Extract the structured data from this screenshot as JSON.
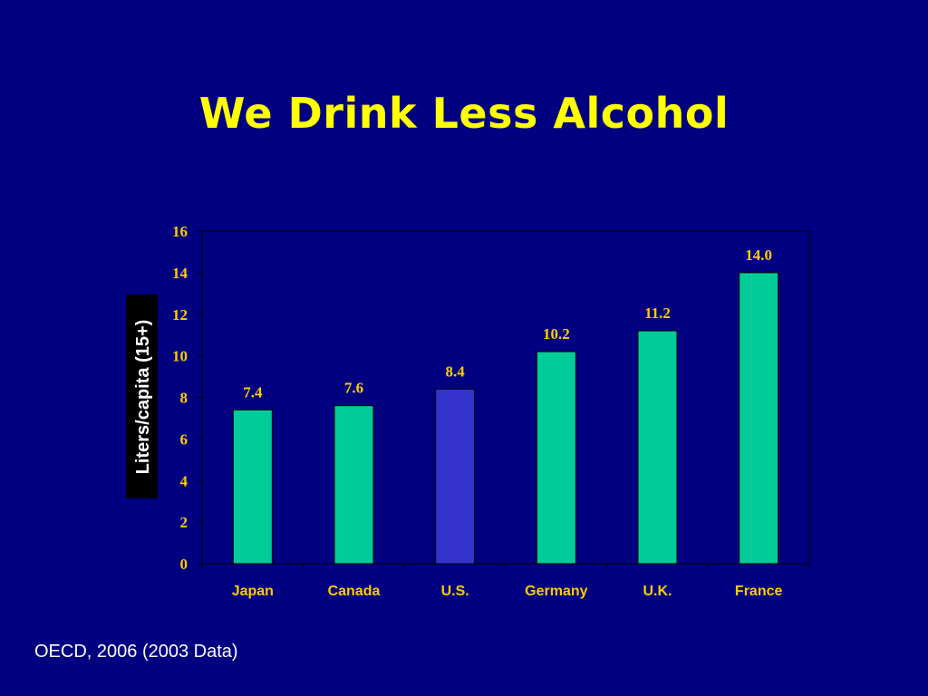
{
  "slide": {
    "title": "We Drink Less Alcohol",
    "source": "OECD, 2006 (2003 Data)"
  },
  "colors": {
    "background": "#000080",
    "title": "#FFFF00",
    "bar_default": "#00CC99",
    "bar_highlight": "#3333CC",
    "labels": "#FFCC00",
    "axis": "#000000"
  },
  "chart_data": {
    "type": "bar",
    "title": "",
    "xlabel": "",
    "ylabel": "Liters/capita (15+)",
    "categories": [
      "Japan",
      "Canada",
      "U.S.",
      "Germany",
      "U.K.",
      "France"
    ],
    "values": [
      7.4,
      7.6,
      8.4,
      10.2,
      11.2,
      14.0
    ],
    "value_labels": [
      "7.4",
      "7.6",
      "8.4",
      "10.2",
      "11.2",
      "14.0"
    ],
    "highlight_category": "U.S.",
    "ylim": [
      0,
      16
    ],
    "yticks": [
      0,
      2,
      4,
      6,
      8,
      10,
      12,
      14,
      16
    ],
    "grid": false,
    "legend": "none"
  }
}
